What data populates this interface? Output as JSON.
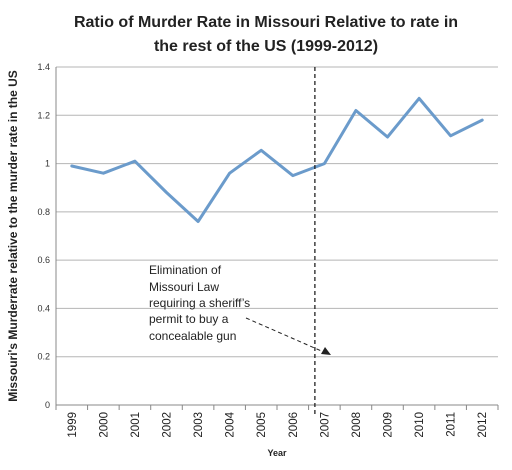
{
  "chart_data": {
    "type": "line",
    "title_lines": [
      "Ratio of Murder Rate in Missouri Relative to rate in",
      "the rest of the US (1999-2012)"
    ],
    "xlabel": "Year",
    "ylabel": "Missouri's Murderrate relative to the murder rate in the US",
    "categories": [
      "1999",
      "2000",
      "2001",
      "2002",
      "2003",
      "2004",
      "2005",
      "2006",
      "2007",
      "2008",
      "2009",
      "2010",
      "2011",
      "2012"
    ],
    "values": [
      0.99,
      0.96,
      1.01,
      0.88,
      0.76,
      0.96,
      1.055,
      0.95,
      1.0,
      1.22,
      1.11,
      1.27,
      1.115,
      1.18
    ],
    "ylim": [
      0,
      1.4
    ],
    "yticks": [
      "0",
      "0.2",
      "0.4",
      "0.6",
      "0.8",
      "1",
      "1.2",
      "1.4"
    ],
    "grid": true,
    "series_color": "#6b9bcb",
    "event_line_at": 7.7,
    "annotation": {
      "lines": [
        "Elimination of",
        "Missouri Law",
        "requiring a sheriff’s",
        "permit to buy a",
        "concealable gun"
      ]
    }
  }
}
